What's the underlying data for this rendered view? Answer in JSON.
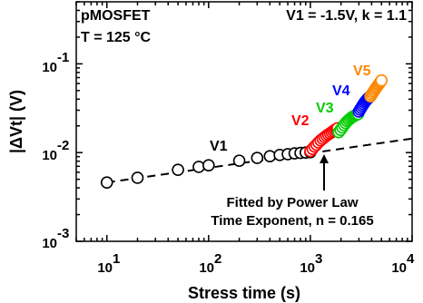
{
  "chart_data": {
    "type": "scatter",
    "xscale": "log",
    "yscale": "log",
    "xlim": [
      5,
      10000
    ],
    "ylim": [
      0.001,
      0.5
    ],
    "xlabel": "Stress time (s)",
    "ylabel": "|ΔVt| (V)",
    "x_ticks": [
      {
        "base": "10",
        "exp": "1"
      },
      {
        "base": "10",
        "exp": "2"
      },
      {
        "base": "10",
        "exp": "3"
      },
      {
        "base": "10",
        "exp": "4"
      }
    ],
    "y_ticks": [
      {
        "base": "10",
        "exp": "-1"
      },
      {
        "base": "10",
        "exp": "-2"
      },
      {
        "base": "10",
        "exp": "-3"
      }
    ],
    "annotations": {
      "device": "pMOSFET",
      "temperature_prefix": "T = 125 ",
      "temperature_unit": "°C",
      "condition": "V1 = -1.5V, k = 1.1",
      "fit_line1": "Fitted by Power Law",
      "fit_line2": "Time Exponent, n = 0.165"
    },
    "fit": {
      "type": "power_law",
      "exponent": 0.165,
      "x_range": [
        10,
        10000
      ],
      "y_at_10": 0.0046,
      "color": "#000000"
    },
    "series": [
      {
        "name": "V1",
        "color": "#000000",
        "x": [
          10,
          20,
          50,
          80,
          100,
          200,
          300,
          400,
          500,
          600,
          700,
          800,
          900,
          1000
        ],
        "y": [
          0.0046,
          0.0052,
          0.0064,
          0.0069,
          0.0072,
          0.0081,
          0.0087,
          0.0091,
          0.0094,
          0.0096,
          0.0098,
          0.0099,
          0.01,
          0.0101
        ]
      },
      {
        "name": "V2",
        "color": "#ff0000",
        "x": [
          1000,
          1050,
          1100,
          1150,
          1200,
          1260,
          1320,
          1380,
          1440,
          1500,
          1560,
          1620,
          1680,
          1740,
          1800,
          1850
        ],
        "y": [
          0.0104,
          0.011,
          0.0117,
          0.0123,
          0.013,
          0.0137,
          0.0143,
          0.0149,
          0.0155,
          0.016,
          0.0165,
          0.017,
          0.0175,
          0.018,
          0.0184,
          0.0188
        ]
      },
      {
        "name": "V3",
        "color": "#00cc00",
        "x": [
          1900,
          1980,
          2060,
          2140,
          2220,
          2300,
          2380,
          2460,
          2540,
          2620,
          2700,
          2780,
          2860,
          2950
        ],
        "y": [
          0.017,
          0.018,
          0.0192,
          0.0204,
          0.0215,
          0.0225,
          0.0233,
          0.0241,
          0.0248,
          0.0254,
          0.0259,
          0.0264,
          0.0268,
          0.0272
        ]
      },
      {
        "name": "V4",
        "color": "#0000ff",
        "x": [
          3000,
          3080,
          3160,
          3240,
          3320,
          3400,
          3480,
          3560,
          3640,
          3720,
          3800,
          3880
        ],
        "y": [
          0.029,
          0.0305,
          0.032,
          0.0335,
          0.035,
          0.0365,
          0.0378,
          0.039,
          0.0402,
          0.0412,
          0.0422,
          0.043
        ]
      },
      {
        "name": "V5",
        "color": "#ff8800",
        "x": [
          3900,
          4000,
          4100,
          4200,
          4300,
          4400,
          4500,
          4600,
          4700,
          4800,
          4900,
          5000
        ],
        "y": [
          0.043,
          0.045,
          0.047,
          0.049,
          0.051,
          0.053,
          0.055,
          0.057,
          0.059,
          0.061,
          0.063,
          0.065
        ]
      }
    ]
  }
}
